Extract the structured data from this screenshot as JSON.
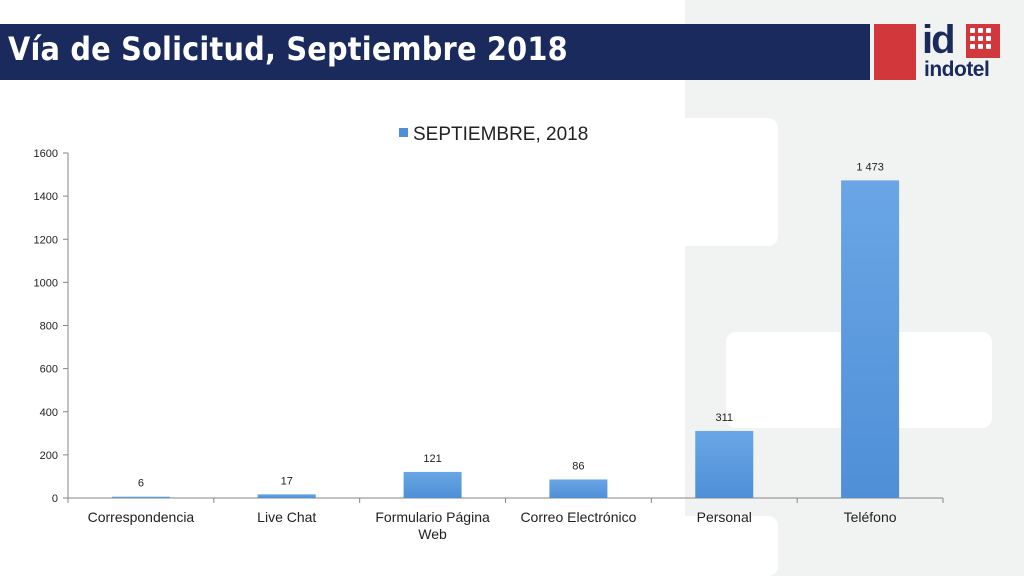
{
  "slide": {
    "title": "Vía de Solicitud, Septiembre 2018",
    "logo_mark": "id",
    "logo_name": "indotel",
    "title_bar_color": "#1b2a5c",
    "logo_color": "#d1373b"
  },
  "chart_data": {
    "type": "bar",
    "categories": [
      "Correspondencia",
      "Live Chat",
      "Formulario Página Web",
      "Correo Electrónico",
      "Personal",
      "Teléfono"
    ],
    "series": [
      {
        "name": "SEPTIEMBRE, 2018",
        "values": [
          6,
          17,
          121,
          86,
          311,
          1473
        ],
        "color": "#4f8fd6"
      }
    ],
    "data_labels": [
      "6",
      "17",
      "121",
      "86",
      "311",
      "1 473"
    ],
    "yticks": [
      0,
      200,
      400,
      600,
      800,
      1000,
      1200,
      1400,
      1600
    ],
    "ylim": [
      0,
      1600
    ],
    "grid": false,
    "legend": "top-center"
  }
}
